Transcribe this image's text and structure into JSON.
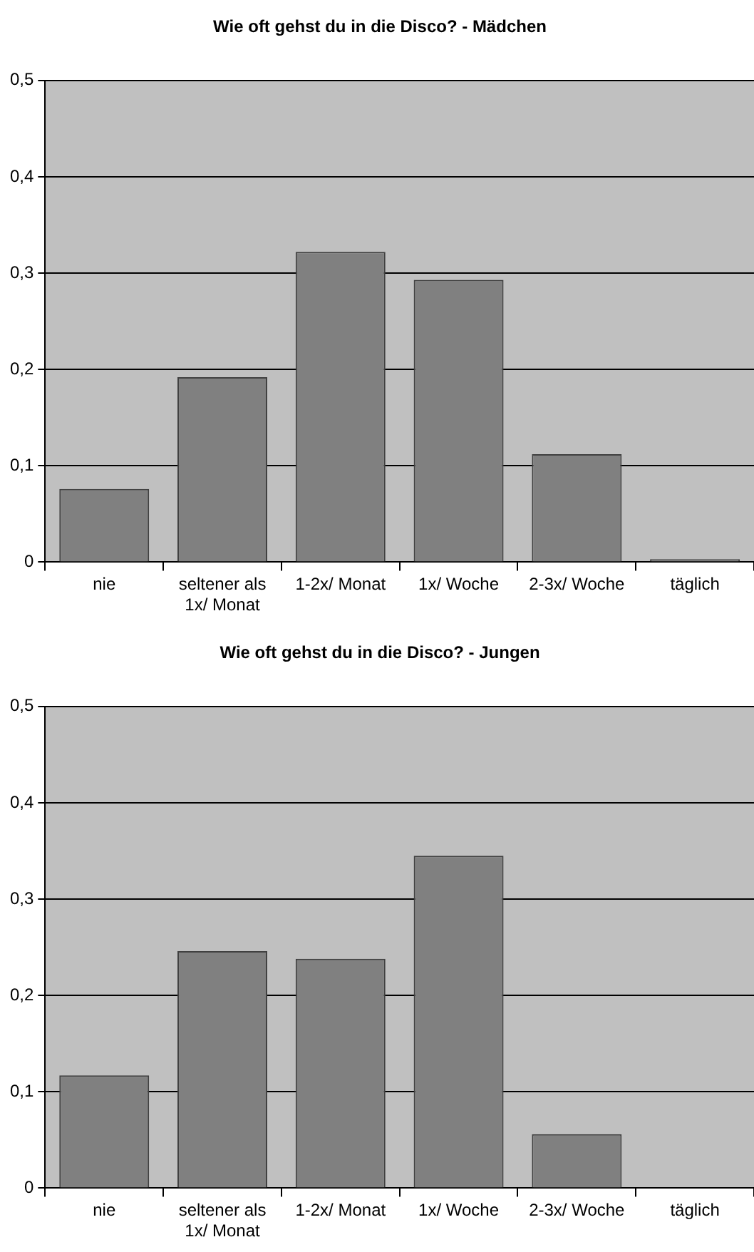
{
  "chart_data": [
    {
      "type": "bar",
      "title": "Wie oft gehst du in die Disco? - Mädchen",
      "categories": [
        "nie",
        "seltener als 1x/ Monat",
        "1-2x/ Monat",
        "1x/ Woche",
        "2-3x/ Woche",
        "täglich"
      ],
      "values": [
        0.076,
        0.192,
        0.322,
        0.293,
        0.112,
        0.003
      ],
      "color": "#808080",
      "ylim": [
        0,
        0.5
      ],
      "yticks": [
        0,
        {
          "value": 0.1,
          "label": "0,1"
        },
        {
          "value": 0.2,
          "label": "0,2"
        },
        {
          "value": 0.3,
          "label": "0,3"
        },
        {
          "value": 0.4,
          "label": "0,4"
        },
        {
          "value": 0.5,
          "label": "0,5"
        }
      ],
      "grid": "y",
      "legend": false
    },
    {
      "type": "bar",
      "title": "Wie oft gehst du in die Disco? - Jungen",
      "categories": [
        "nie",
        "seltener als 1x/ Monat",
        "1-2x/ Monat",
        "1x/ Woche",
        "2-3x/ Woche",
        "täglich"
      ],
      "values": [
        0.117,
        0.246,
        0.238,
        0.345,
        0.056,
        0
      ],
      "color": "#808080",
      "ylim": [
        0,
        0.5
      ],
      "yticks": [
        0,
        {
          "value": 0.1,
          "label": "0,1"
        },
        {
          "value": 0.2,
          "label": "0,2"
        },
        {
          "value": 0.3,
          "label": "0,3"
        },
        {
          "value": 0.4,
          "label": "0,4"
        },
        {
          "value": 0.5,
          "label": "0,5"
        }
      ],
      "grid": "y",
      "legend": false
    }
  ]
}
